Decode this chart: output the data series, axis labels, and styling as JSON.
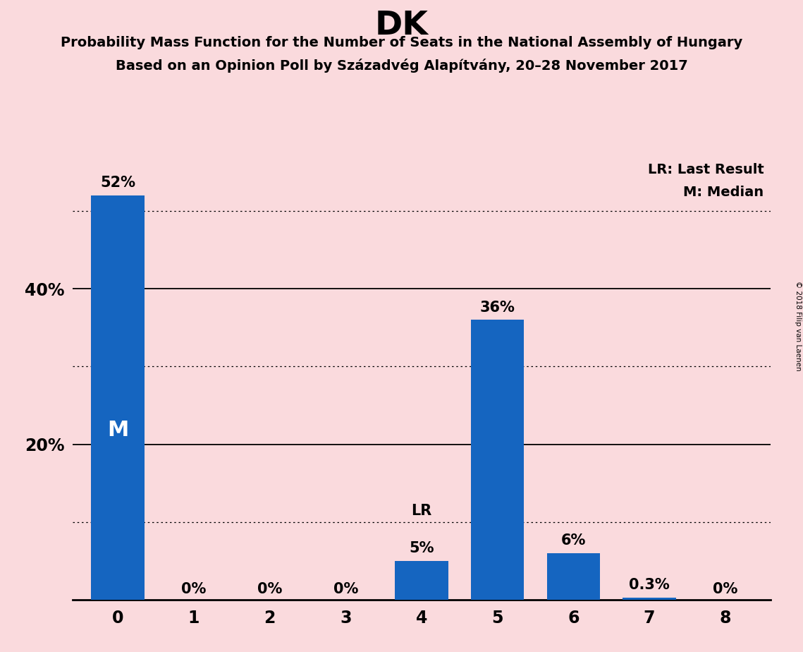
{
  "title": "DK",
  "subtitle1": "Probability Mass Function for the Number of Seats in the National Assembly of Hungary",
  "subtitle2": "Based on an Opinion Poll by Századvég Alapítvány, 20–28 November 2017",
  "copyright": "© 2018 Filip van Laenen",
  "categories": [
    0,
    1,
    2,
    3,
    4,
    5,
    6,
    7,
    8
  ],
  "values": [
    52,
    0,
    0,
    0,
    5,
    36,
    6,
    0.3,
    0
  ],
  "bar_labels": [
    "52%",
    "0%",
    "0%",
    "0%",
    "5%",
    "36%",
    "6%",
    "0.3%",
    "0%"
  ],
  "bar_color": "#1565C0",
  "background_color": "#FADADD",
  "median_bar": 0,
  "median_label": "M",
  "lr_bar": 4,
  "lr_label": "LR",
  "legend_lr": "LR: Last Result",
  "legend_m": "M: Median",
  "dotted_lines": [
    10,
    30,
    50
  ],
  "solid_lines": [
    20,
    40
  ],
  "ylim": [
    0,
    57
  ],
  "ytick_positions": [
    20,
    40
  ],
  "ytick_labels": [
    "20%",
    "40%"
  ]
}
